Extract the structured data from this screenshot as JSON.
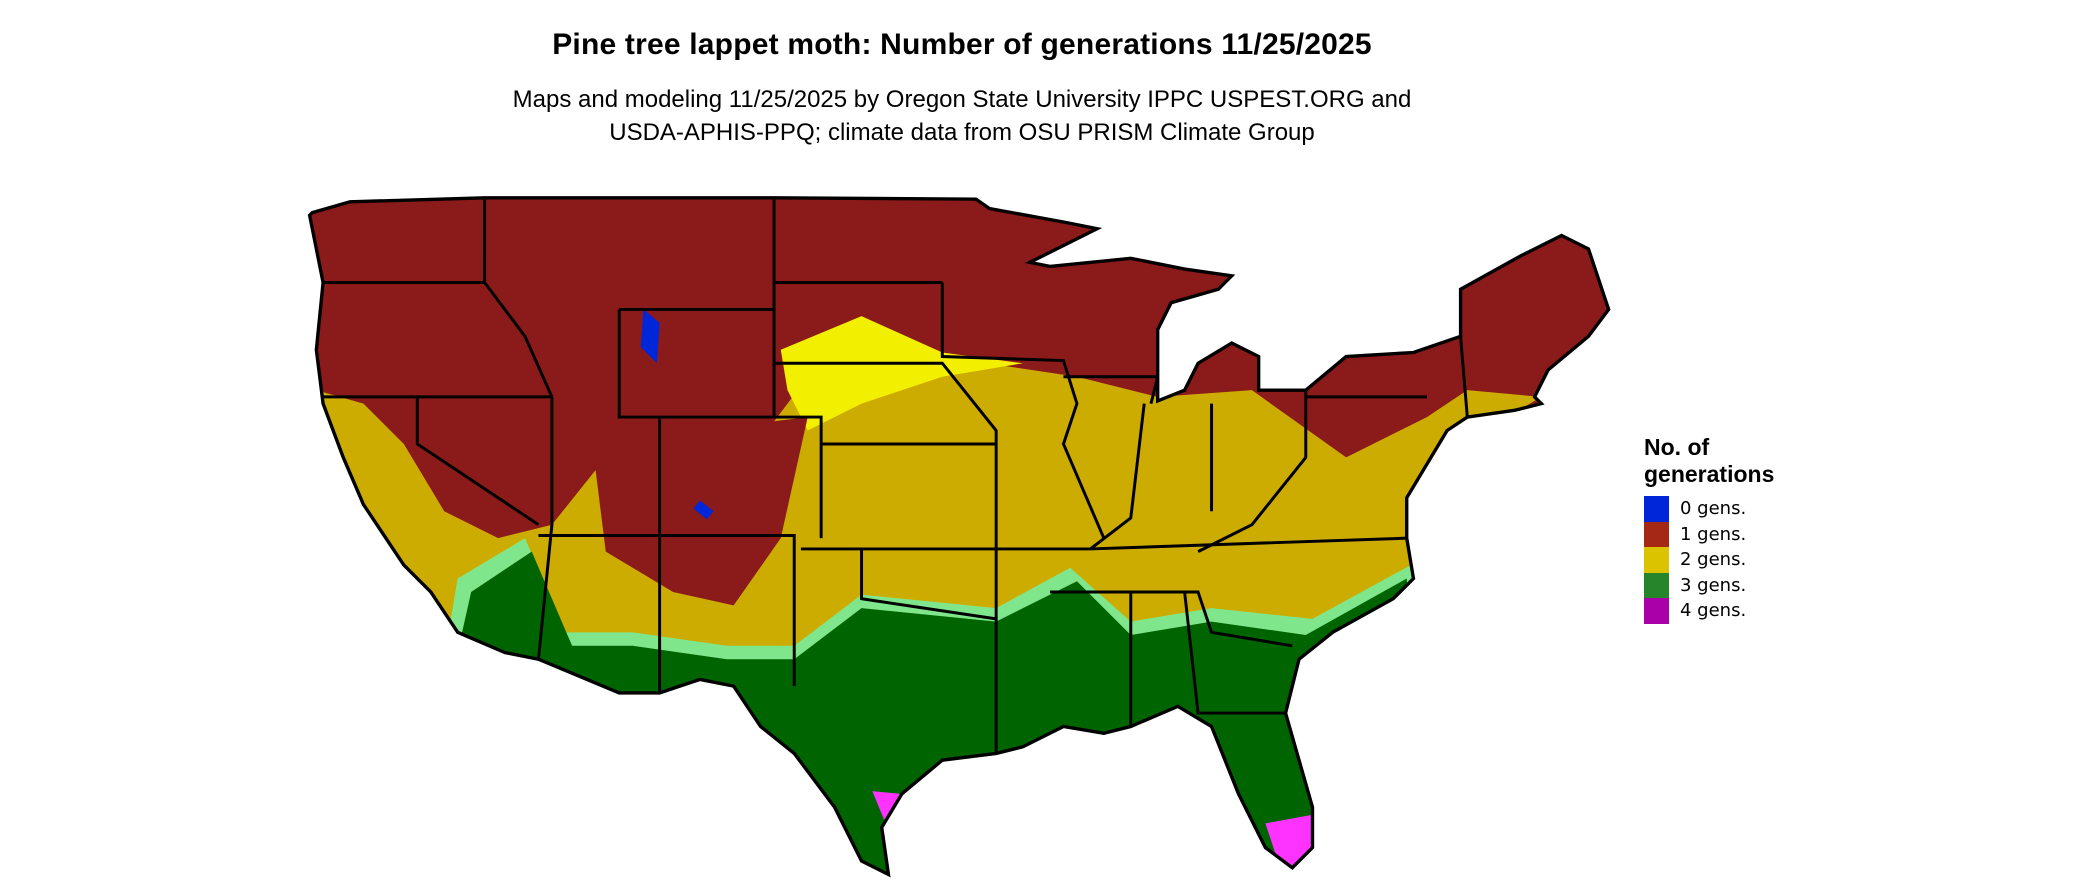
{
  "title": "Pine tree lappet moth: Number of generations 11/25/2025",
  "subtitle_lines": [
    "Maps and modeling 11/25/2025 by Oregon State University IPPC USPEST.ORG and",
    "USDA-APHIS-PPQ; climate data from OSU PRISM Climate Group"
  ],
  "legend": {
    "title_lines": [
      "No. of",
      "generations"
    ],
    "items": [
      {
        "label": "0 gens.",
        "color": "#0026d9"
      },
      {
        "label": "1 gens.",
        "color": "#a52815"
      },
      {
        "label": "2 gens.",
        "color": "#dcc300"
      },
      {
        "label": "3 gens.",
        "color": "#24852a"
      },
      {
        "label": "4 gens.",
        "color": "#a900a9"
      }
    ]
  },
  "map_colors": {
    "one_gen_map": "#8b1a1a",
    "two_gen_map": "#ccac00",
    "two_gen_bright": "#f2ef00",
    "three_gen_map": "#006400",
    "three_gen_edge": "#80e68c",
    "four_gen_map": "#ff33ff",
    "zero_gen_map": "#0026d9",
    "borders": "#000000"
  }
}
